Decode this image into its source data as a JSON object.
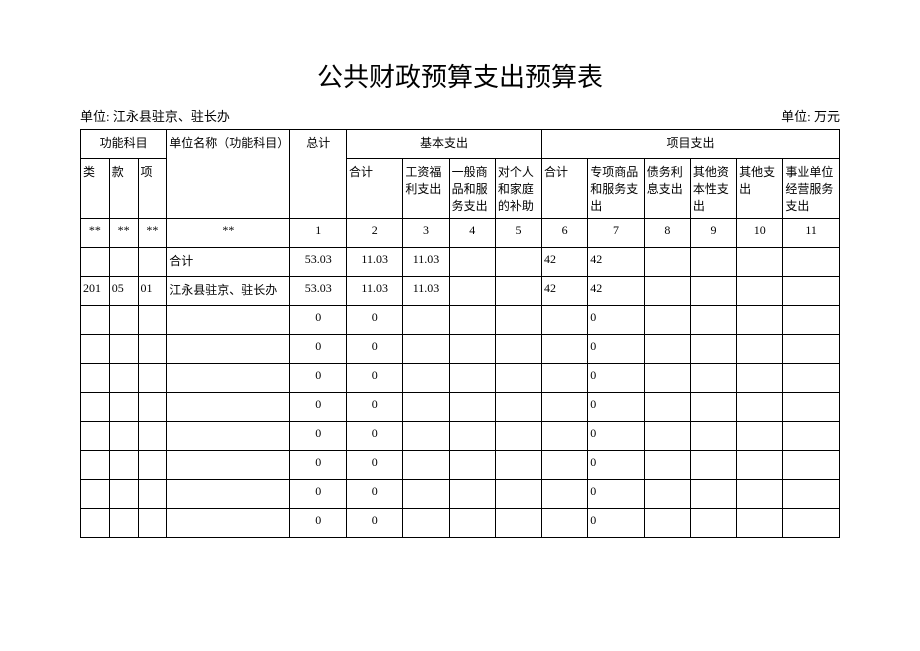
{
  "title": "公共财政预算支出预算表",
  "org_label": "单位: 江永县驻京、驻长办",
  "unit_label": "单位: 万元",
  "headers": {
    "func_subject": "功能科目",
    "unit_name": "单位名称（功能科目）",
    "total": "总计",
    "basic_expend": "基本支出",
    "project_expend": "项目支出",
    "lei": "类",
    "kuan": "款",
    "xiang": "项",
    "b_sum": "合计",
    "b_salary": "工资福利支出",
    "b_goods": "一般商品和服务支出",
    "b_personal": "对个人和家庭的补助",
    "p_sum": "合计",
    "p_special": "专项商品和服务支出",
    "p_debt": "债务利息支出",
    "p_capital": "其他资本性支出",
    "p_other": "其他支出",
    "p_institution": "事业单位经营服务支出"
  },
  "index_row": [
    "**",
    "**",
    "**",
    "**",
    "1",
    "2",
    "3",
    "4",
    "5",
    "6",
    "7",
    "8",
    "9",
    "10",
    "11"
  ],
  "rows": [
    {
      "c": [
        "",
        "",
        "",
        "合计",
        "53.03",
        "11.03",
        "11.03",
        "",
        "",
        "42",
        "42",
        "",
        "",
        "",
        ""
      ]
    },
    {
      "c": [
        "201",
        "05",
        "01",
        "江永县驻京、驻长办",
        "53.03",
        "11.03",
        "11.03",
        "",
        "",
        "42",
        "42",
        "",
        "",
        "",
        ""
      ]
    },
    {
      "c": [
        "",
        "",
        "",
        "",
        "0",
        "0",
        "",
        "",
        "",
        "",
        "0",
        "",
        "",
        "",
        ""
      ]
    },
    {
      "c": [
        "",
        "",
        "",
        "",
        "0",
        "0",
        "",
        "",
        "",
        "",
        "0",
        "",
        "",
        "",
        ""
      ]
    },
    {
      "c": [
        "",
        "",
        "",
        "",
        "0",
        "0",
        "",
        "",
        "",
        "",
        "0",
        "",
        "",
        "",
        ""
      ]
    },
    {
      "c": [
        "",
        "",
        "",
        "",
        "0",
        "0",
        "",
        "",
        "",
        "",
        "0",
        "",
        "",
        "",
        ""
      ]
    },
    {
      "c": [
        "",
        "",
        "",
        "",
        "0",
        "0",
        "",
        "",
        "",
        "",
        "0",
        "",
        "",
        "",
        ""
      ]
    },
    {
      "c": [
        "",
        "",
        "",
        "",
        "0",
        "0",
        "",
        "",
        "",
        "",
        "0",
        "",
        "",
        "",
        ""
      ]
    },
    {
      "c": [
        "",
        "",
        "",
        "",
        "0",
        "0",
        "",
        "",
        "",
        "",
        "0",
        "",
        "",
        "",
        ""
      ]
    },
    {
      "c": [
        "",
        "",
        "",
        "",
        "0",
        "0",
        "",
        "",
        "",
        "",
        "0",
        "",
        "",
        "",
        ""
      ]
    }
  ]
}
